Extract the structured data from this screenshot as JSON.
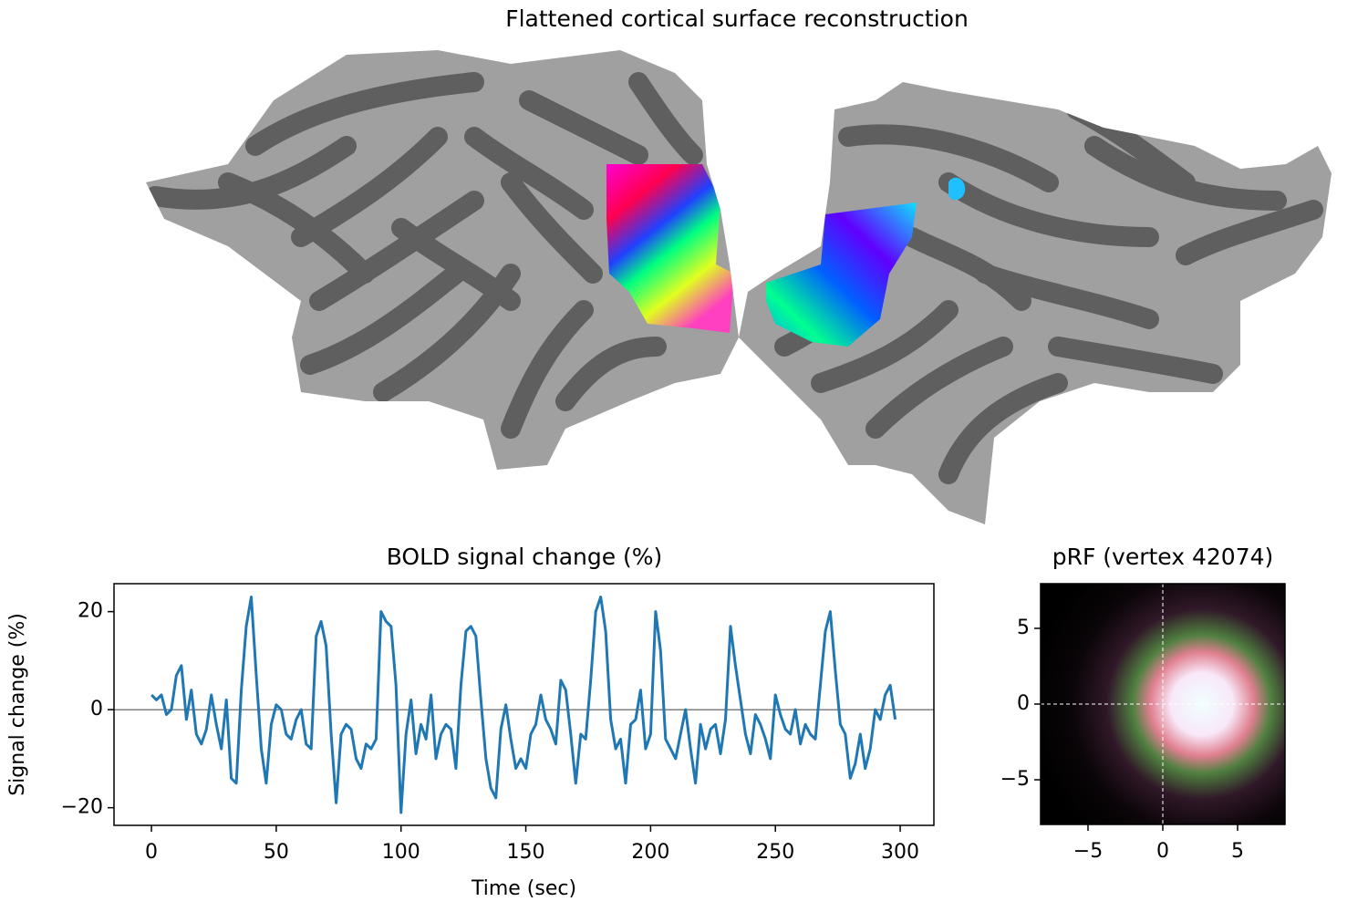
{
  "chart_data": [
    {
      "type": "image",
      "title": "Flattened cortical surface reconstruction"
    },
    {
      "type": "line",
      "title": "BOLD signal change (%)",
      "xlabel": "Time (sec)",
      "ylabel": "Signal change (%)",
      "color": "#1f77b4",
      "x": [
        0,
        2,
        4,
        6,
        8,
        10,
        12,
        14,
        16,
        18,
        20,
        22,
        24,
        26,
        28,
        30,
        32,
        34,
        36,
        38,
        40,
        42,
        44,
        46,
        48,
        50,
        52,
        54,
        56,
        58,
        60,
        62,
        64,
        66,
        68,
        70,
        72,
        74,
        76,
        78,
        80,
        82,
        84,
        86,
        88,
        90,
        92,
        94,
        96,
        98,
        100,
        102,
        104,
        106,
        108,
        110,
        112,
        114,
        116,
        118,
        120,
        122,
        124,
        126,
        128,
        130,
        132,
        134,
        136,
        138,
        140,
        142,
        144,
        146,
        148,
        150,
        152,
        154,
        156,
        158,
        160,
        162,
        164,
        166,
        168,
        170,
        172,
        174,
        176,
        178,
        180,
        182,
        184,
        186,
        188,
        190,
        192,
        194,
        196,
        198,
        200,
        202,
        204,
        206,
        208,
        210,
        212,
        214,
        216,
        218,
        220,
        222,
        224,
        226,
        228,
        230,
        232,
        234,
        236,
        238,
        240,
        242,
        244,
        246,
        248,
        250,
        252,
        254,
        256,
        258,
        260,
        262,
        264,
        266,
        268,
        270,
        272,
        274,
        276,
        278,
        280,
        282,
        284,
        286,
        288,
        290,
        292,
        294,
        296,
        298
      ],
      "values": [
        3,
        2,
        3,
        -1,
        0,
        7,
        9,
        -2,
        4,
        -5,
        -7,
        -4,
        3,
        -3,
        -8,
        2,
        -14,
        -15,
        4,
        17,
        23,
        7,
        -8,
        -15,
        -3,
        1,
        0,
        -5,
        -6,
        -2,
        0,
        -7,
        -8,
        15,
        18,
        13,
        -5,
        -19,
        -5,
        -3,
        -4,
        -10,
        -12,
        -7,
        -8,
        -6,
        20,
        18,
        17,
        5,
        -21,
        -5,
        2,
        -9,
        -3,
        -6,
        3,
        -10,
        -5,
        -3,
        -4,
        -12,
        5,
        16,
        17,
        15,
        2,
        -10,
        -16,
        -18,
        -4,
        1,
        -6,
        -12,
        -10,
        -12,
        -5,
        -3,
        3,
        -2,
        -4,
        -7,
        6,
        4,
        -5,
        -15,
        -5,
        -6,
        6,
        20,
        23,
        16,
        -2,
        -8,
        -6,
        -15,
        -3,
        -2,
        4,
        -8,
        -5,
        20,
        12,
        -6,
        -8,
        -10,
        -5,
        0,
        -8,
        -15,
        -3,
        -8,
        -4,
        -3,
        -9,
        -2,
        17,
        9,
        2,
        -5,
        -9,
        -1,
        -3,
        -6,
        -10,
        3,
        -1,
        -4,
        -5,
        0,
        -7,
        -3,
        -5,
        -6,
        5,
        16,
        20,
        8,
        -3,
        -5,
        -14,
        -11,
        -5,
        -12,
        -8,
        0,
        -2,
        3,
        5,
        -2
      ],
      "hline": 0,
      "xlim": [
        -15,
        313.5
      ],
      "ylim": [
        -23.6,
        25.7
      ],
      "xticks": [
        0,
        50,
        100,
        150,
        200,
        250,
        300
      ],
      "yticks": [
        {
          "value": -20,
          "label": "−20"
        },
        0,
        20
      ]
    },
    {
      "type": "image",
      "title": "pRF (vertex 42074)",
      "xlim": [
        -8.17,
        8.17
      ],
      "ylim": [
        -7.95,
        7.95
      ],
      "xticks": [
        {
          "value": -5,
          "label": "−5"
        },
        0,
        5
      ],
      "yticks": [
        {
          "value": -5,
          "label": "−5"
        },
        0,
        5
      ]
    }
  ]
}
